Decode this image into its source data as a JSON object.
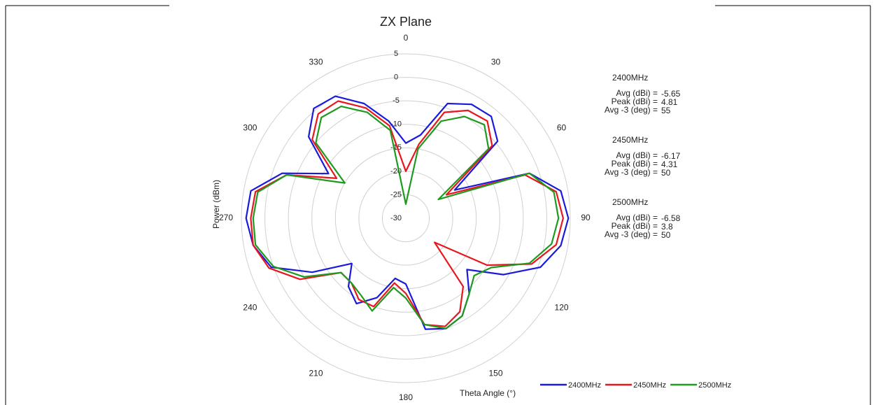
{
  "chart_data": {
    "type": "polar",
    "title": "ZX Plane",
    "ylabel": "Power (dBm)",
    "xlabel": "Theta Angle (°)",
    "theta": [
      0,
      10,
      20,
      30,
      40,
      50,
      60,
      70,
      80,
      90,
      100,
      110,
      120,
      130,
      140,
      150,
      160,
      170,
      180,
      190,
      200,
      210,
      220,
      230,
      240,
      250,
      260,
      270,
      280,
      290,
      300,
      310,
      320,
      330,
      340,
      350
    ],
    "thetaticks": [
      0,
      30,
      60,
      90,
      120,
      150,
      180,
      210,
      240,
      270,
      300,
      330
    ],
    "rlim": [
      -30,
      5
    ],
    "rticks": [
      5,
      0,
      -5,
      -10,
      -15,
      -20,
      -25,
      -30
    ],
    "legend": "bottom",
    "series": [
      {
        "name": "2400MHz",
        "color": "#1a1adc",
        "values": [
          -14,
          -12,
          -4,
          -2,
          -1.7,
          -4.5,
          -18,
          -2,
          3.5,
          4.6,
          3.5,
          0.5,
          -6,
          -13,
          -9,
          -6,
          -5,
          -6,
          -16,
          -17,
          -12,
          -9,
          -11,
          -15,
          -7,
          0.5,
          3,
          4,
          3.5,
          -2,
          -11,
          -3,
          0.5,
          0,
          -4,
          -9
        ]
      },
      {
        "name": "2450MHz",
        "color": "#e8161e",
        "values": [
          -20,
          -14,
          -6,
          -3.5,
          -3,
          -6,
          -20,
          -3,
          2.5,
          3.5,
          2.5,
          -1.5,
          -10,
          -22,
          -11,
          -7,
          -5.5,
          -7,
          -14,
          -16,
          -10,
          -10,
          -12,
          -12,
          -4,
          1,
          3,
          3,
          2.5,
          -3,
          -13,
          -4,
          -1,
          -1.2,
          -5,
          -10
        ]
      },
      {
        "name": "2500MHz",
        "color": "#1f9a1f",
        "values": [
          -27,
          -15,
          -8,
          -5,
          -4,
          -7,
          -22,
          -2,
          2,
          2.5,
          1.5,
          -2,
          -9,
          -11,
          -9,
          -6,
          -5,
          -7,
          -13,
          -15,
          -9,
          -11,
          -12,
          -12,
          -5,
          0,
          2.5,
          2.5,
          2,
          -3,
          -15,
          -5,
          -2,
          -2.5,
          -6,
          -11
        ]
      }
    ],
    "annotations": [
      {
        "heading": "2400MHz",
        "lines": [
          {
            "label": "Avg (dBi) =",
            "value": -5.65
          },
          {
            "label": "Peak (dBi) =",
            "value": 4.81
          },
          {
            "label": "Avg -3 (deg) =",
            "value": 55
          }
        ]
      },
      {
        "heading": "2450MHz",
        "lines": [
          {
            "label": "Avg (dBi) =",
            "value": -6.17
          },
          {
            "label": "Peak (dBi) =",
            "value": 4.31
          },
          {
            "label": "Avg -3 (deg) =",
            "value": 50
          }
        ]
      },
      {
        "heading": "2500MHz",
        "lines": [
          {
            "label": "Avg (dBi) =",
            "value": -6.58
          },
          {
            "label": "Peak (dBi) =",
            "value": 3.8
          },
          {
            "label": "Avg -3 (deg) =",
            "value": 50
          }
        ]
      }
    ]
  }
}
